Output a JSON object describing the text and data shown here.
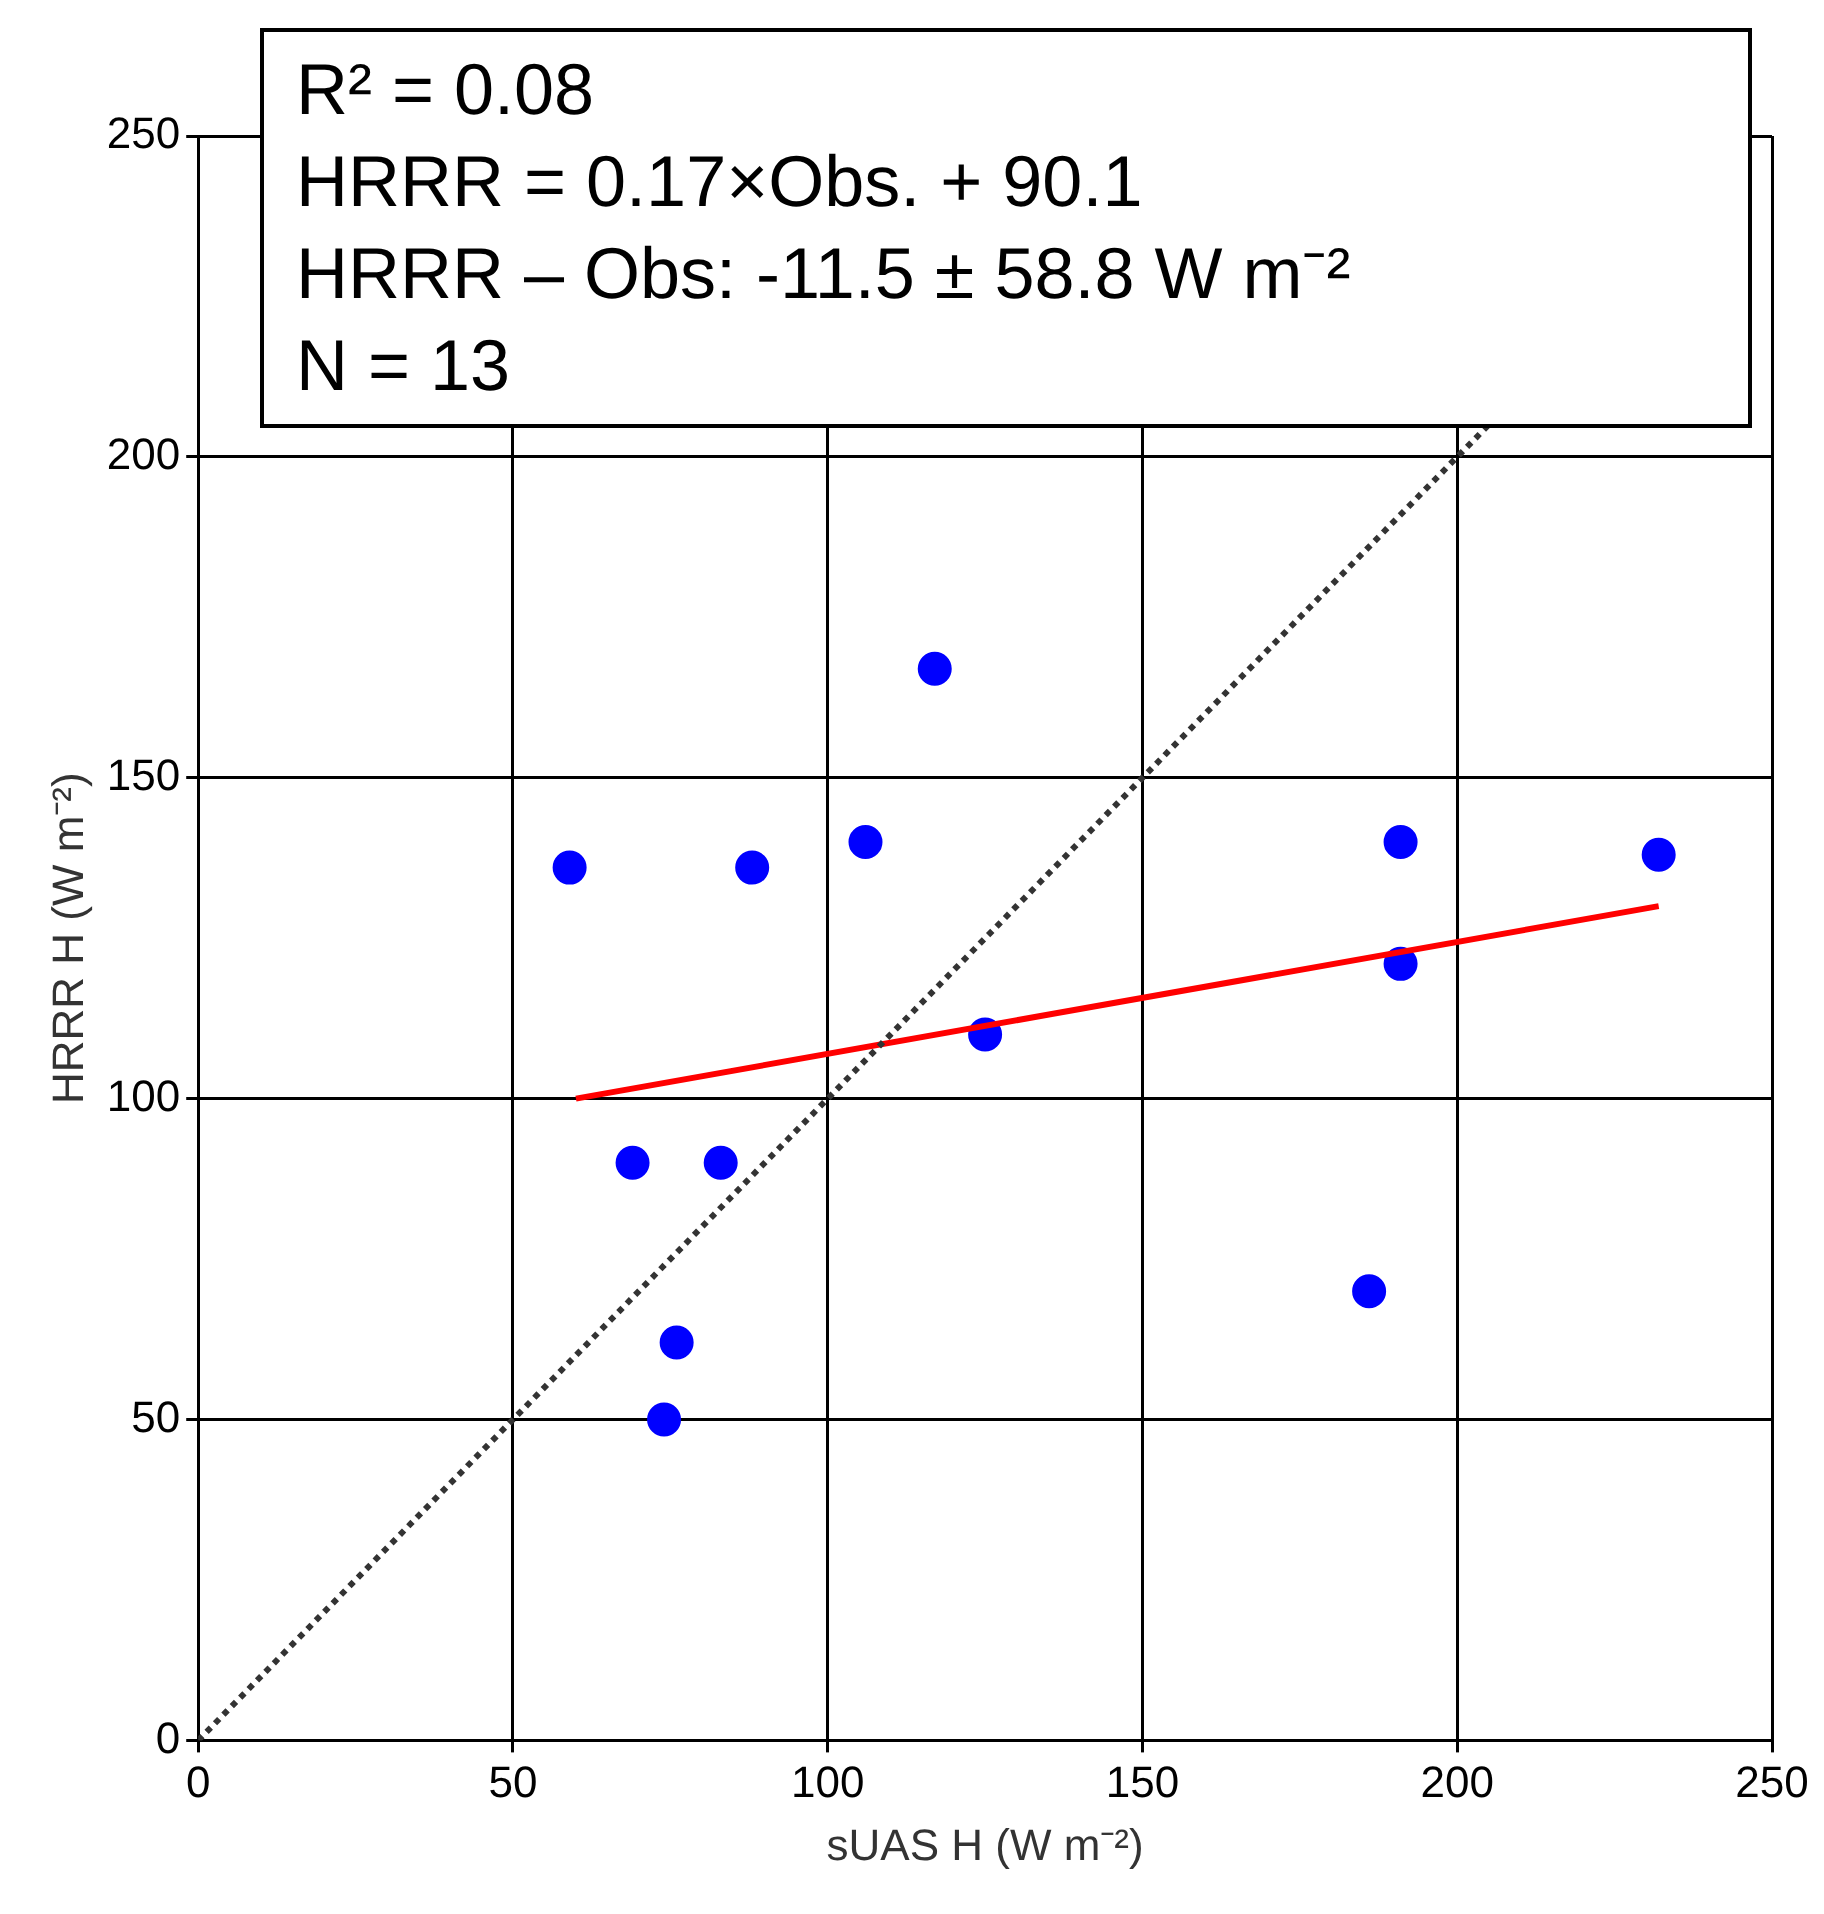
{
  "chart_data": {
    "type": "scatter",
    "xlabel": "sUAS H (W m⁻²)",
    "ylabel": "HRRR H (W m⁻²)",
    "xlim": [
      0,
      250
    ],
    "xticks": [
      0,
      50,
      100,
      150,
      200,
      250
    ],
    "ylim": [
      0,
      250
    ],
    "yticks": [
      0,
      50,
      100,
      150,
      200,
      250
    ],
    "grid": true,
    "legend": false,
    "marker": "circle",
    "series": [
      {
        "type": "line",
        "color": "#333333",
        "line_style": "dotted",
        "marker": "none",
        "x": [
          0,
          205
        ],
        "values": [
          0,
          205
        ]
      },
      {
        "type": "line",
        "color": "#ff0000",
        "line_style": "solid",
        "marker": "none",
        "x": [
          60,
          232
        ],
        "values": [
          100,
          130
        ]
      },
      {
        "color": "#0000ff",
        "x": [
          59,
          69,
          83,
          88,
          76,
          74,
          106,
          117,
          125,
          186,
          191,
          191,
          232
        ],
        "values": [
          136,
          90,
          90,
          136,
          62,
          50,
          140,
          167,
          110,
          70,
          121,
          140,
          138
        ]
      }
    ],
    "annotations": [
      "R² = 0.08",
      "HRRR = 0.17×Obs. + 90.1",
      "HRRR – Obs: -11.5 ± 58.8 W m⁻²",
      "N = 13"
    ]
  }
}
